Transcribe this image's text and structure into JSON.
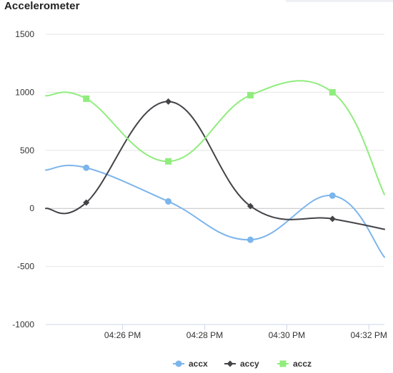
{
  "title": "Accelerometer",
  "chart_data": {
    "type": "line",
    "title": "Accelerometer",
    "categories": [
      "04:26 PM",
      "04:28 PM",
      "04:30 PM",
      "04:32 PM"
    ],
    "x_points": [
      0.0,
      0.39,
      1.18,
      1.97,
      2.76,
      3.26
    ],
    "ylim": [
      -1000,
      1500
    ],
    "yticks": [
      1500,
      1000,
      500,
      0,
      -500,
      -1000
    ],
    "grid": true,
    "legend_position": "bottom",
    "series": [
      {
        "name": "accx",
        "color": "#7cb5ec",
        "marker": "circle",
        "x": [
          0.0,
          0.39,
          1.18,
          1.97,
          2.76,
          3.26
        ],
        "y": [
          330,
          350,
          60,
          -270,
          110,
          -420
        ],
        "markers": [
          1,
          2,
          3,
          4
        ]
      },
      {
        "name": "accy",
        "color": "#434348",
        "marker": "diamond",
        "x": [
          0.0,
          0.39,
          1.18,
          1.97,
          2.76,
          3.26
        ],
        "y": [
          0,
          50,
          920,
          20,
          -90,
          -180
        ],
        "markers": [
          1,
          2,
          3,
          4
        ]
      },
      {
        "name": "accz",
        "color": "#90ed7d",
        "marker": "square",
        "x": [
          0.0,
          0.39,
          1.18,
          1.97,
          2.76,
          3.26
        ],
        "y": [
          970,
          945,
          405,
          975,
          1000,
          120
        ],
        "markers": [
          1,
          2,
          3,
          4
        ]
      }
    ]
  }
}
